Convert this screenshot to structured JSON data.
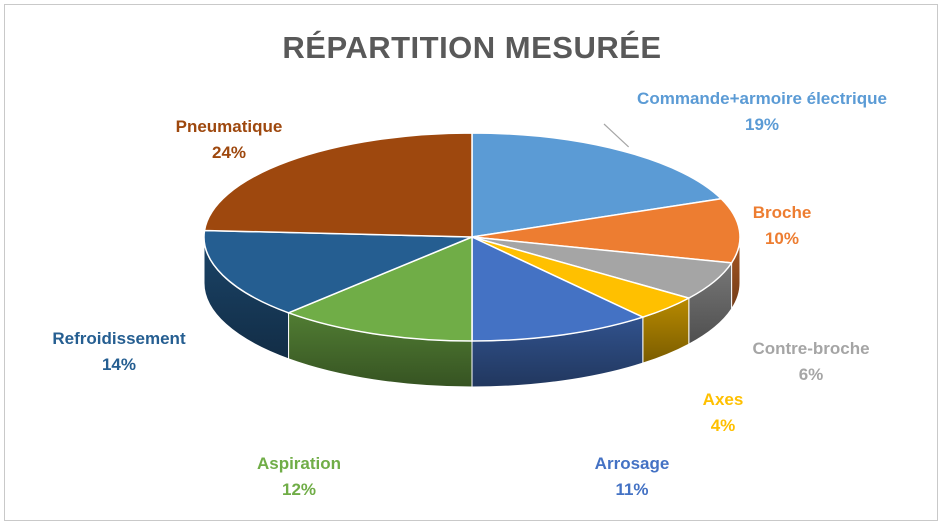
{
  "chart_data": {
    "type": "pie",
    "title": "RÉPARTITION MESURÉE",
    "slices": [
      {
        "name": "Commande+armoire électrique",
        "value": 19,
        "pct_label": "19%",
        "color": "#5B9BD5"
      },
      {
        "name": "Broche",
        "value": 10,
        "pct_label": "10%",
        "color": "#ED7D31"
      },
      {
        "name": "Contre-broche",
        "value": 6,
        "pct_label": "6%",
        "color": "#A5A5A5"
      },
      {
        "name": "Axes",
        "value": 4,
        "pct_label": "4%",
        "color": "#FFC000"
      },
      {
        "name": "Arrosage",
        "value": 11,
        "pct_label": "11%",
        "color": "#4472C4"
      },
      {
        "name": "Aspiration",
        "value": 12,
        "pct_label": "12%",
        "color": "#70AD47"
      },
      {
        "name": "Refroidissement",
        "value": 14,
        "pct_label": "14%",
        "color": "#255E91"
      },
      {
        "name": "Pneumatique",
        "value": 24,
        "pct_label": "24%",
        "color": "#9E480E"
      }
    ],
    "label_colors": [
      "#5B9BD5",
      "#ED7D31",
      "#A5A5A5",
      "#FFC000",
      "#4472C4",
      "#70AD47",
      "#255E91",
      "#9E480E"
    ],
    "style": "3d-pie",
    "legend": "none"
  }
}
